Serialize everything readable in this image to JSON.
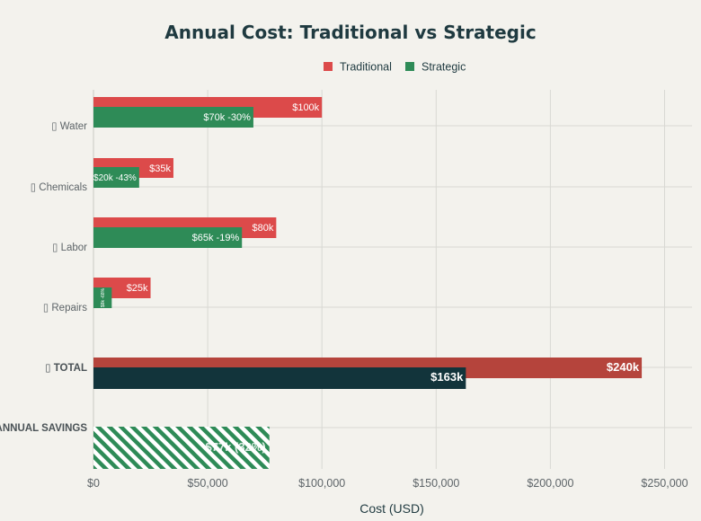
{
  "chart_data": {
    "type": "bar",
    "orientation": "horizontal",
    "title": "Annual Cost: Traditional vs Strategic",
    "xlabel": "Cost (USD)",
    "ylabel": "",
    "xlim": [
      0,
      262000
    ],
    "xticks": [
      0,
      50000,
      100000,
      150000,
      200000,
      250000
    ],
    "xtick_labels": [
      "$0",
      "$50,000",
      "$100,000",
      "$150,000",
      "$200,000",
      "$250,000"
    ],
    "grid": true,
    "legend_position": "top-center",
    "categories": [
      "▯ Water",
      "▯ Chemicals",
      "▯ Labor",
      "▯ Repairs",
      "▯ TOTAL",
      "ANNUAL SAVINGS"
    ],
    "series": [
      {
        "name": "Traditional",
        "color": "#dc4a4a",
        "values": [
          100000,
          35000,
          80000,
          25000,
          240000,
          null
        ],
        "labels": [
          "$100k",
          "$35k",
          "$80k",
          "$25k",
          "$240k",
          ""
        ]
      },
      {
        "name": "Strategic",
        "color": "#2e8b57",
        "values": [
          70000,
          20000,
          65000,
          8000,
          163000,
          null
        ],
        "labels": [
          "$70k -30%",
          "$20k -43%",
          "$65k -19%",
          "$8k -68%",
          "$163k",
          ""
        ]
      }
    ],
    "savings": {
      "value": 77000,
      "label": "$77k (32%)",
      "color": "#2e8b57"
    },
    "total_colors": {
      "traditional": "#b5443c",
      "strategic": "#12343b"
    }
  }
}
